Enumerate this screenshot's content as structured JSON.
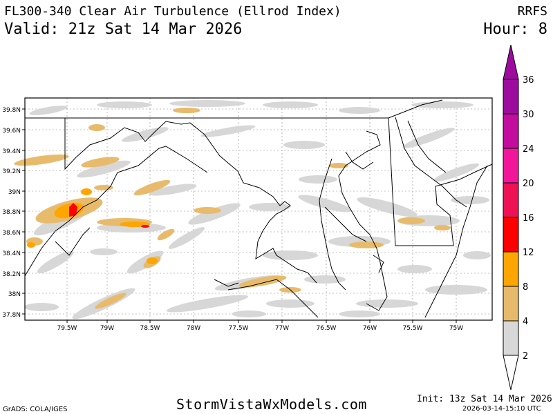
{
  "header": {
    "title": "FL300-340 Clear Air Turbulence (Ellrod Index)",
    "valid": "Valid: 21z Sat 14 Mar 2026",
    "model": "RRFS",
    "hour": "Hour: 8"
  },
  "map": {
    "lat_labels": [
      "39.8N",
      "39.6N",
      "39.4N",
      "39.2N",
      "39N",
      "38.8N",
      "38.6N",
      "38.4N",
      "38.2N",
      "38N",
      "37.8N"
    ],
    "lon_labels": [
      "79.5W",
      "79W",
      "78.5W",
      "78W",
      "77.5W",
      "77W",
      "76.5W",
      "76W",
      "75.5W",
      "75W"
    ],
    "colors": {
      "border": "#000000",
      "gridline": "#888888"
    }
  },
  "colorbar": {
    "levels": [
      "2",
      "4",
      "8",
      "12",
      "16",
      "20",
      "24",
      "30",
      "36"
    ],
    "colors": [
      "#ffffff",
      "#d8d8d8",
      "#e6b96c",
      "#fea500",
      "#ff0000",
      "#ee1254",
      "#f2179a",
      "#c30d9f",
      "#9c0b9e"
    ]
  },
  "turbulence_fill_colors": {
    "light": "#d7d7d7",
    "moderate": "#e8bb6c",
    "strong": "#fea500",
    "severe": "#ff0000"
  },
  "footer": {
    "site": "StormVistaWxModels.com",
    "grads": "GrADS: COLA/IGES",
    "init": "Init: 13z Sat 14 Mar 2026",
    "stamp": "2026-03-14-15:10 UTC"
  }
}
